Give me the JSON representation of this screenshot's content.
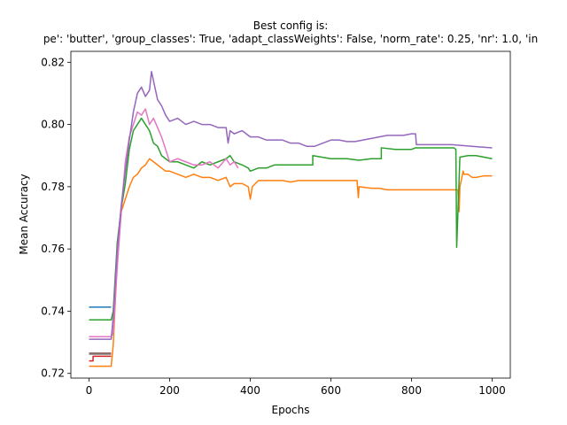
{
  "chart_data": {
    "type": "line",
    "title": "Best config is:",
    "subtitle": "pe': 'butter', 'group_classes': True, 'adapt_classWeights': False, 'norm_rate': 0.25, 'nr': 1.0, 'in",
    "xlabel": "Epochs",
    "ylabel": "Mean Accuracy",
    "xlim": [
      -45,
      1045
    ],
    "ylim": [
      0.7185,
      0.8235
    ],
    "xticks": [
      0,
      200,
      400,
      600,
      800,
      1000
    ],
    "xtick_labels": [
      "0",
      "200",
      "400",
      "600",
      "800",
      "1000"
    ],
    "yticks": [
      0.72,
      0.74,
      0.76,
      0.78,
      0.8,
      0.82
    ],
    "ytick_labels": [
      "0.72",
      "0.74",
      "0.76",
      "0.78",
      "0.80",
      "0.82"
    ],
    "grid": false,
    "legend": "none",
    "series": [
      {
        "color": "#1f77b4",
        "x": [
          0,
          55
        ],
        "y": [
          0.7413,
          0.7413
        ]
      },
      {
        "color": "#d62728",
        "x": [
          0,
          10,
          10,
          55
        ],
        "y": [
          0.724,
          0.724,
          0.7255,
          0.7255
        ]
      },
      {
        "color": "#8c564b",
        "x": [
          0,
          55
        ],
        "y": [
          0.7265,
          0.7265
        ]
      },
      {
        "color": "#7f7f7f",
        "x": [
          0,
          55
        ],
        "y": [
          0.7262,
          0.7262
        ]
      },
      {
        "color": "#ff7f0e",
        "x": [
          0,
          55,
          60,
          70,
          80,
          90,
          100,
          110,
          120,
          130,
          140,
          150,
          160,
          170,
          180,
          190,
          200,
          220,
          240,
          260,
          280,
          300,
          320,
          340,
          350,
          360,
          380,
          395,
          400,
          405,
          420,
          440,
          460,
          480,
          500,
          520,
          600,
          665,
          668,
          670,
          700,
          720,
          740,
          760,
          780,
          800,
          850,
          915,
          918,
          920,
          925,
          928,
          930,
          940,
          950,
          960,
          980,
          1000
        ],
        "y": [
          0.7223,
          0.7223,
          0.729,
          0.756,
          0.772,
          0.776,
          0.78,
          0.783,
          0.784,
          0.786,
          0.787,
          0.789,
          0.788,
          0.787,
          0.786,
          0.785,
          0.785,
          0.784,
          0.783,
          0.784,
          0.783,
          0.783,
          0.782,
          0.783,
          0.78,
          0.781,
          0.781,
          0.78,
          0.776,
          0.78,
          0.782,
          0.782,
          0.782,
          0.782,
          0.7815,
          0.782,
          0.782,
          0.782,
          0.7765,
          0.78,
          0.7795,
          0.7795,
          0.779,
          0.779,
          0.779,
          0.779,
          0.779,
          0.779,
          0.772,
          0.78,
          0.783,
          0.785,
          0.784,
          0.784,
          0.783,
          0.783,
          0.7835,
          0.7835
        ]
      },
      {
        "color": "#2ca02c",
        "x": [
          0,
          55,
          60,
          70,
          80,
          90,
          100,
          110,
          120,
          130,
          140,
          150,
          160,
          170,
          180,
          190,
          200,
          220,
          240,
          260,
          280,
          300,
          320,
          340,
          350,
          360,
          380,
          395,
          400,
          420,
          440,
          460,
          480,
          500,
          540,
          555,
          555,
          600,
          640,
          670,
          700,
          720,
          725,
          725,
          760,
          800,
          810,
          810,
          850,
          905,
          910,
          912,
          920,
          940,
          960,
          980,
          1000
        ],
        "y": [
          0.7372,
          0.7372,
          0.74,
          0.762,
          0.773,
          0.781,
          0.792,
          0.798,
          0.8,
          0.802,
          0.8,
          0.798,
          0.794,
          0.793,
          0.79,
          0.789,
          0.788,
          0.788,
          0.787,
          0.786,
          0.788,
          0.787,
          0.788,
          0.789,
          0.79,
          0.788,
          0.787,
          0.786,
          0.785,
          0.786,
          0.786,
          0.787,
          0.787,
          0.787,
          0.787,
          0.787,
          0.79,
          0.789,
          0.789,
          0.7885,
          0.789,
          0.789,
          0.789,
          0.7925,
          0.792,
          0.792,
          0.7925,
          0.7925,
          0.7925,
          0.7925,
          0.792,
          0.7605,
          0.7895,
          0.79,
          0.79,
          0.7895,
          0.789
        ]
      },
      {
        "color": "#e377c2",
        "x": [
          0,
          55,
          60,
          70,
          80,
          90,
          100,
          110,
          120,
          130,
          140,
          150,
          160,
          170,
          180,
          190,
          200,
          220,
          240,
          260,
          280,
          300,
          320,
          340,
          350,
          360,
          370
        ],
        "y": [
          0.7318,
          0.7318,
          0.733,
          0.754,
          0.772,
          0.788,
          0.796,
          0.8,
          0.804,
          0.803,
          0.805,
          0.8,
          0.802,
          0.799,
          0.796,
          0.792,
          0.788,
          0.789,
          0.788,
          0.787,
          0.787,
          0.788,
          0.786,
          0.789,
          0.787,
          0.788,
          0.786
        ]
      },
      {
        "color": "#9467bd",
        "x": [
          0,
          55,
          60,
          70,
          80,
          90,
          100,
          110,
          120,
          130,
          140,
          150,
          155,
          160,
          170,
          180,
          190,
          200,
          220,
          240,
          260,
          280,
          300,
          320,
          340,
          345,
          350,
          360,
          380,
          400,
          420,
          440,
          460,
          480,
          500,
          520,
          540,
          560,
          580,
          600,
          620,
          640,
          660,
          680,
          700,
          720,
          740,
          760,
          780,
          800,
          810,
          812,
          820,
          850,
          900,
          950,
          1000
        ],
        "y": [
          0.731,
          0.731,
          0.738,
          0.76,
          0.774,
          0.785,
          0.795,
          0.804,
          0.81,
          0.812,
          0.809,
          0.811,
          0.817,
          0.814,
          0.808,
          0.806,
          0.803,
          0.801,
          0.802,
          0.8,
          0.801,
          0.8,
          0.8,
          0.799,
          0.799,
          0.794,
          0.798,
          0.797,
          0.798,
          0.796,
          0.796,
          0.795,
          0.795,
          0.795,
          0.794,
          0.794,
          0.793,
          0.793,
          0.794,
          0.795,
          0.795,
          0.7945,
          0.7945,
          0.795,
          0.7955,
          0.796,
          0.7965,
          0.7965,
          0.7965,
          0.797,
          0.797,
          0.7935,
          0.7935,
          0.7935,
          0.7935,
          0.793,
          0.7925
        ]
      }
    ]
  }
}
